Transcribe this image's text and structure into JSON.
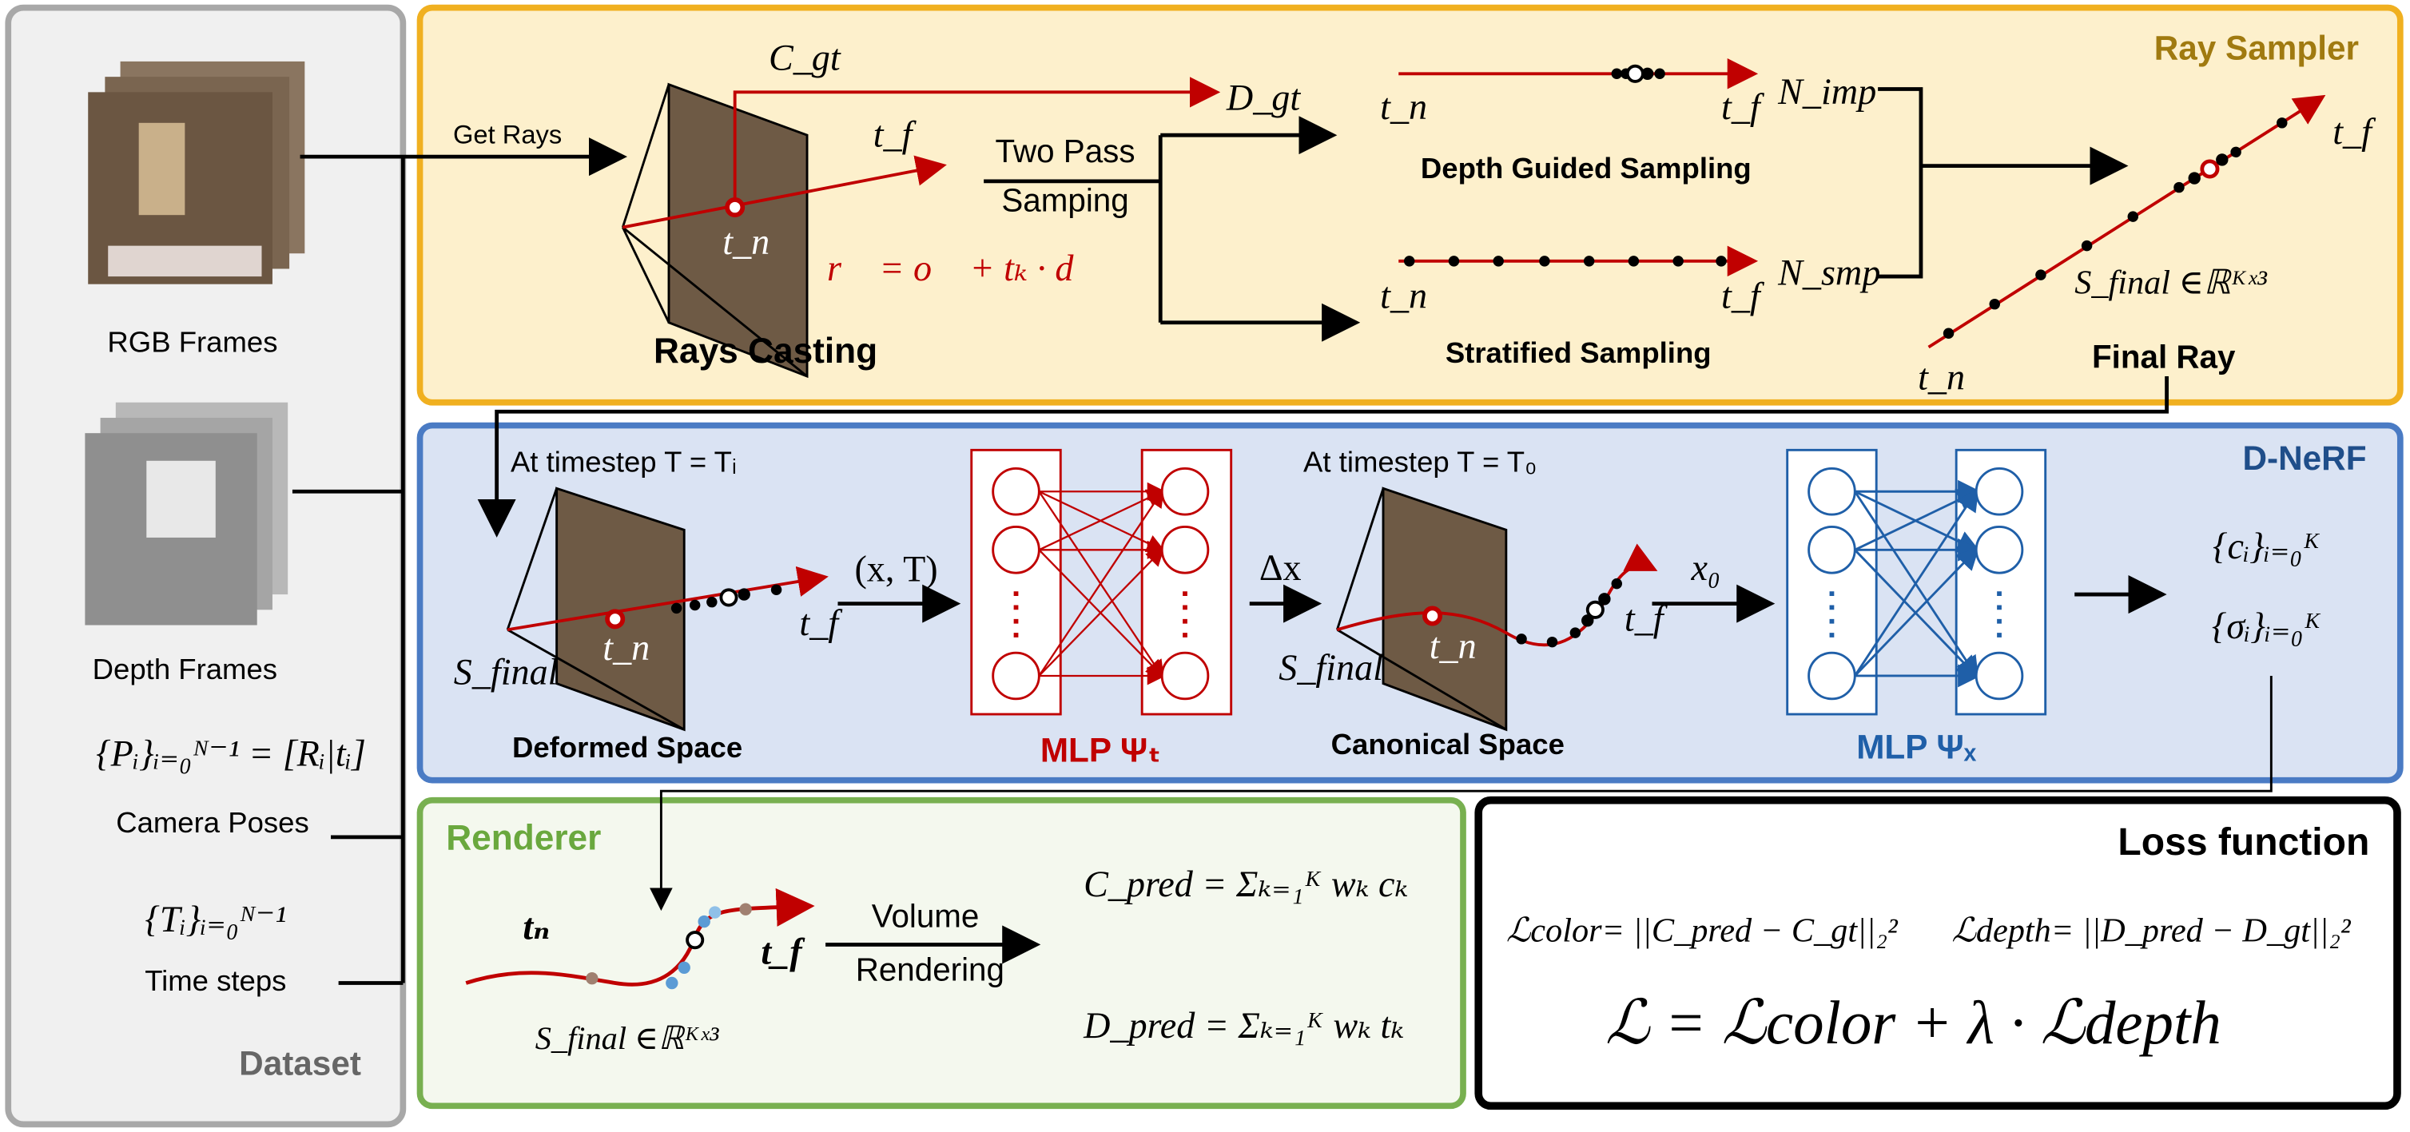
{
  "dataset": {
    "title": "Dataset",
    "rgb_frames": "RGB Frames",
    "depth_frames": "Depth Frames",
    "poses_formula": "{Pᵢ}ᵢ₌₀ᴺ⁻¹ = [Rᵢ|tᵢ]",
    "camera_poses": "Camera Poses",
    "time_formula": "{Tᵢ}ᵢ₌₀ᴺ⁻¹",
    "time_steps": "Time steps"
  },
  "ray_sampler": {
    "title": "Ray Sampler",
    "get_rays": "Get Rays",
    "c_gt": "C_gt",
    "d_gt": "D_gt",
    "t_f_cast": "t_f",
    "t_n_cast": "t_n",
    "ray_equation": "r⃗ = o⃗ + tₖ · d⃗",
    "rays_casting": "Rays Casting",
    "two_pass": "Two Pass",
    "samping": "Samping",
    "t_n_depth": "t_n",
    "t_f_depth": "t_f",
    "n_imp": "N_imp",
    "depth_guided": "Depth Guided Sampling",
    "t_n_strat": "t_n",
    "t_f_strat": "t_f",
    "n_smp": "N_smp",
    "stratified": "Stratified Sampling",
    "t_f_final": "t_f",
    "t_n_final": "t_n",
    "s_final": "S_final ∈ℝᴷˣ³",
    "final_ray": "Final Ray"
  },
  "dnerf": {
    "title": "D-NeRF",
    "timestep_i": "At timestep T = Tᵢ",
    "s_final_def": "S_final",
    "t_n_def": "t_n",
    "t_f_def": "t_f",
    "input": "(x, T)",
    "deformed_space": "Deformed Space",
    "mlp_t": "MLP Ψₜ",
    "delta_x": "Δx",
    "timestep_0": "At timestep T = T₀",
    "s_final_can": "S_final",
    "t_n_can": "t_n",
    "t_f_can": "t_f",
    "x0": "x₀",
    "canonical_space": "Canonical Space",
    "mlp_x": "MLP Ψₓ",
    "colors": "{cᵢ}ᵢ₌₀ᴷ",
    "densities": "{σᵢ}ᵢ₌₀ᴷ"
  },
  "renderer": {
    "title": "Renderer",
    "t_n": "tₙ",
    "t_f": "t_f",
    "s_final": "S_final ∈ℝᴷˣ³",
    "volume": "Volume",
    "rendering": "Rendering",
    "c_pred": "C_pred = Σₖ₌₁ᴷ wₖ cₖ",
    "d_pred": "D_pred = Σₖ₌₁ᴷ wₖ tₖ"
  },
  "loss": {
    "title": "Loss function",
    "l_color": "ℒcolor= ||C_pred − C_gt||₂²",
    "l_depth": "ℒdepth= ||D_pred − D_gt||₂²",
    "total": "ℒ = ℒcolor + λ · ℒdepth"
  }
}
